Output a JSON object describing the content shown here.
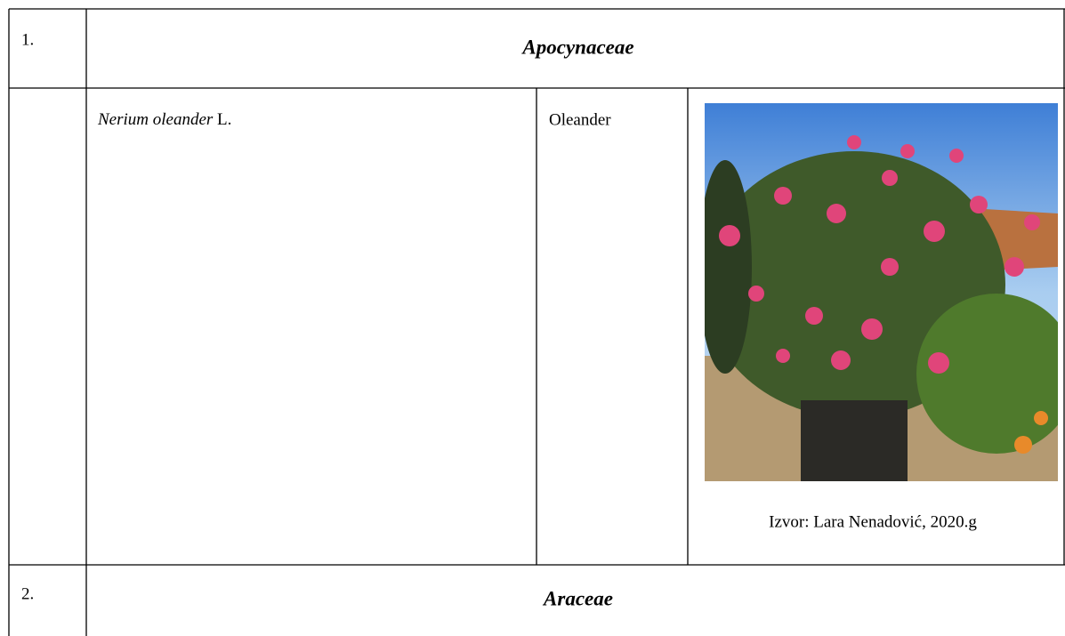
{
  "table": {
    "rows": [
      {
        "number": "1.",
        "family": "Apocynaceae"
      },
      {
        "species": "Nerium oleander",
        "author": "L.",
        "common_name": "Oleander",
        "caption": "Izvor: Lara Nenadović, 2020.g"
      },
      {
        "number": "2.",
        "family": "Araceae"
      }
    ]
  }
}
